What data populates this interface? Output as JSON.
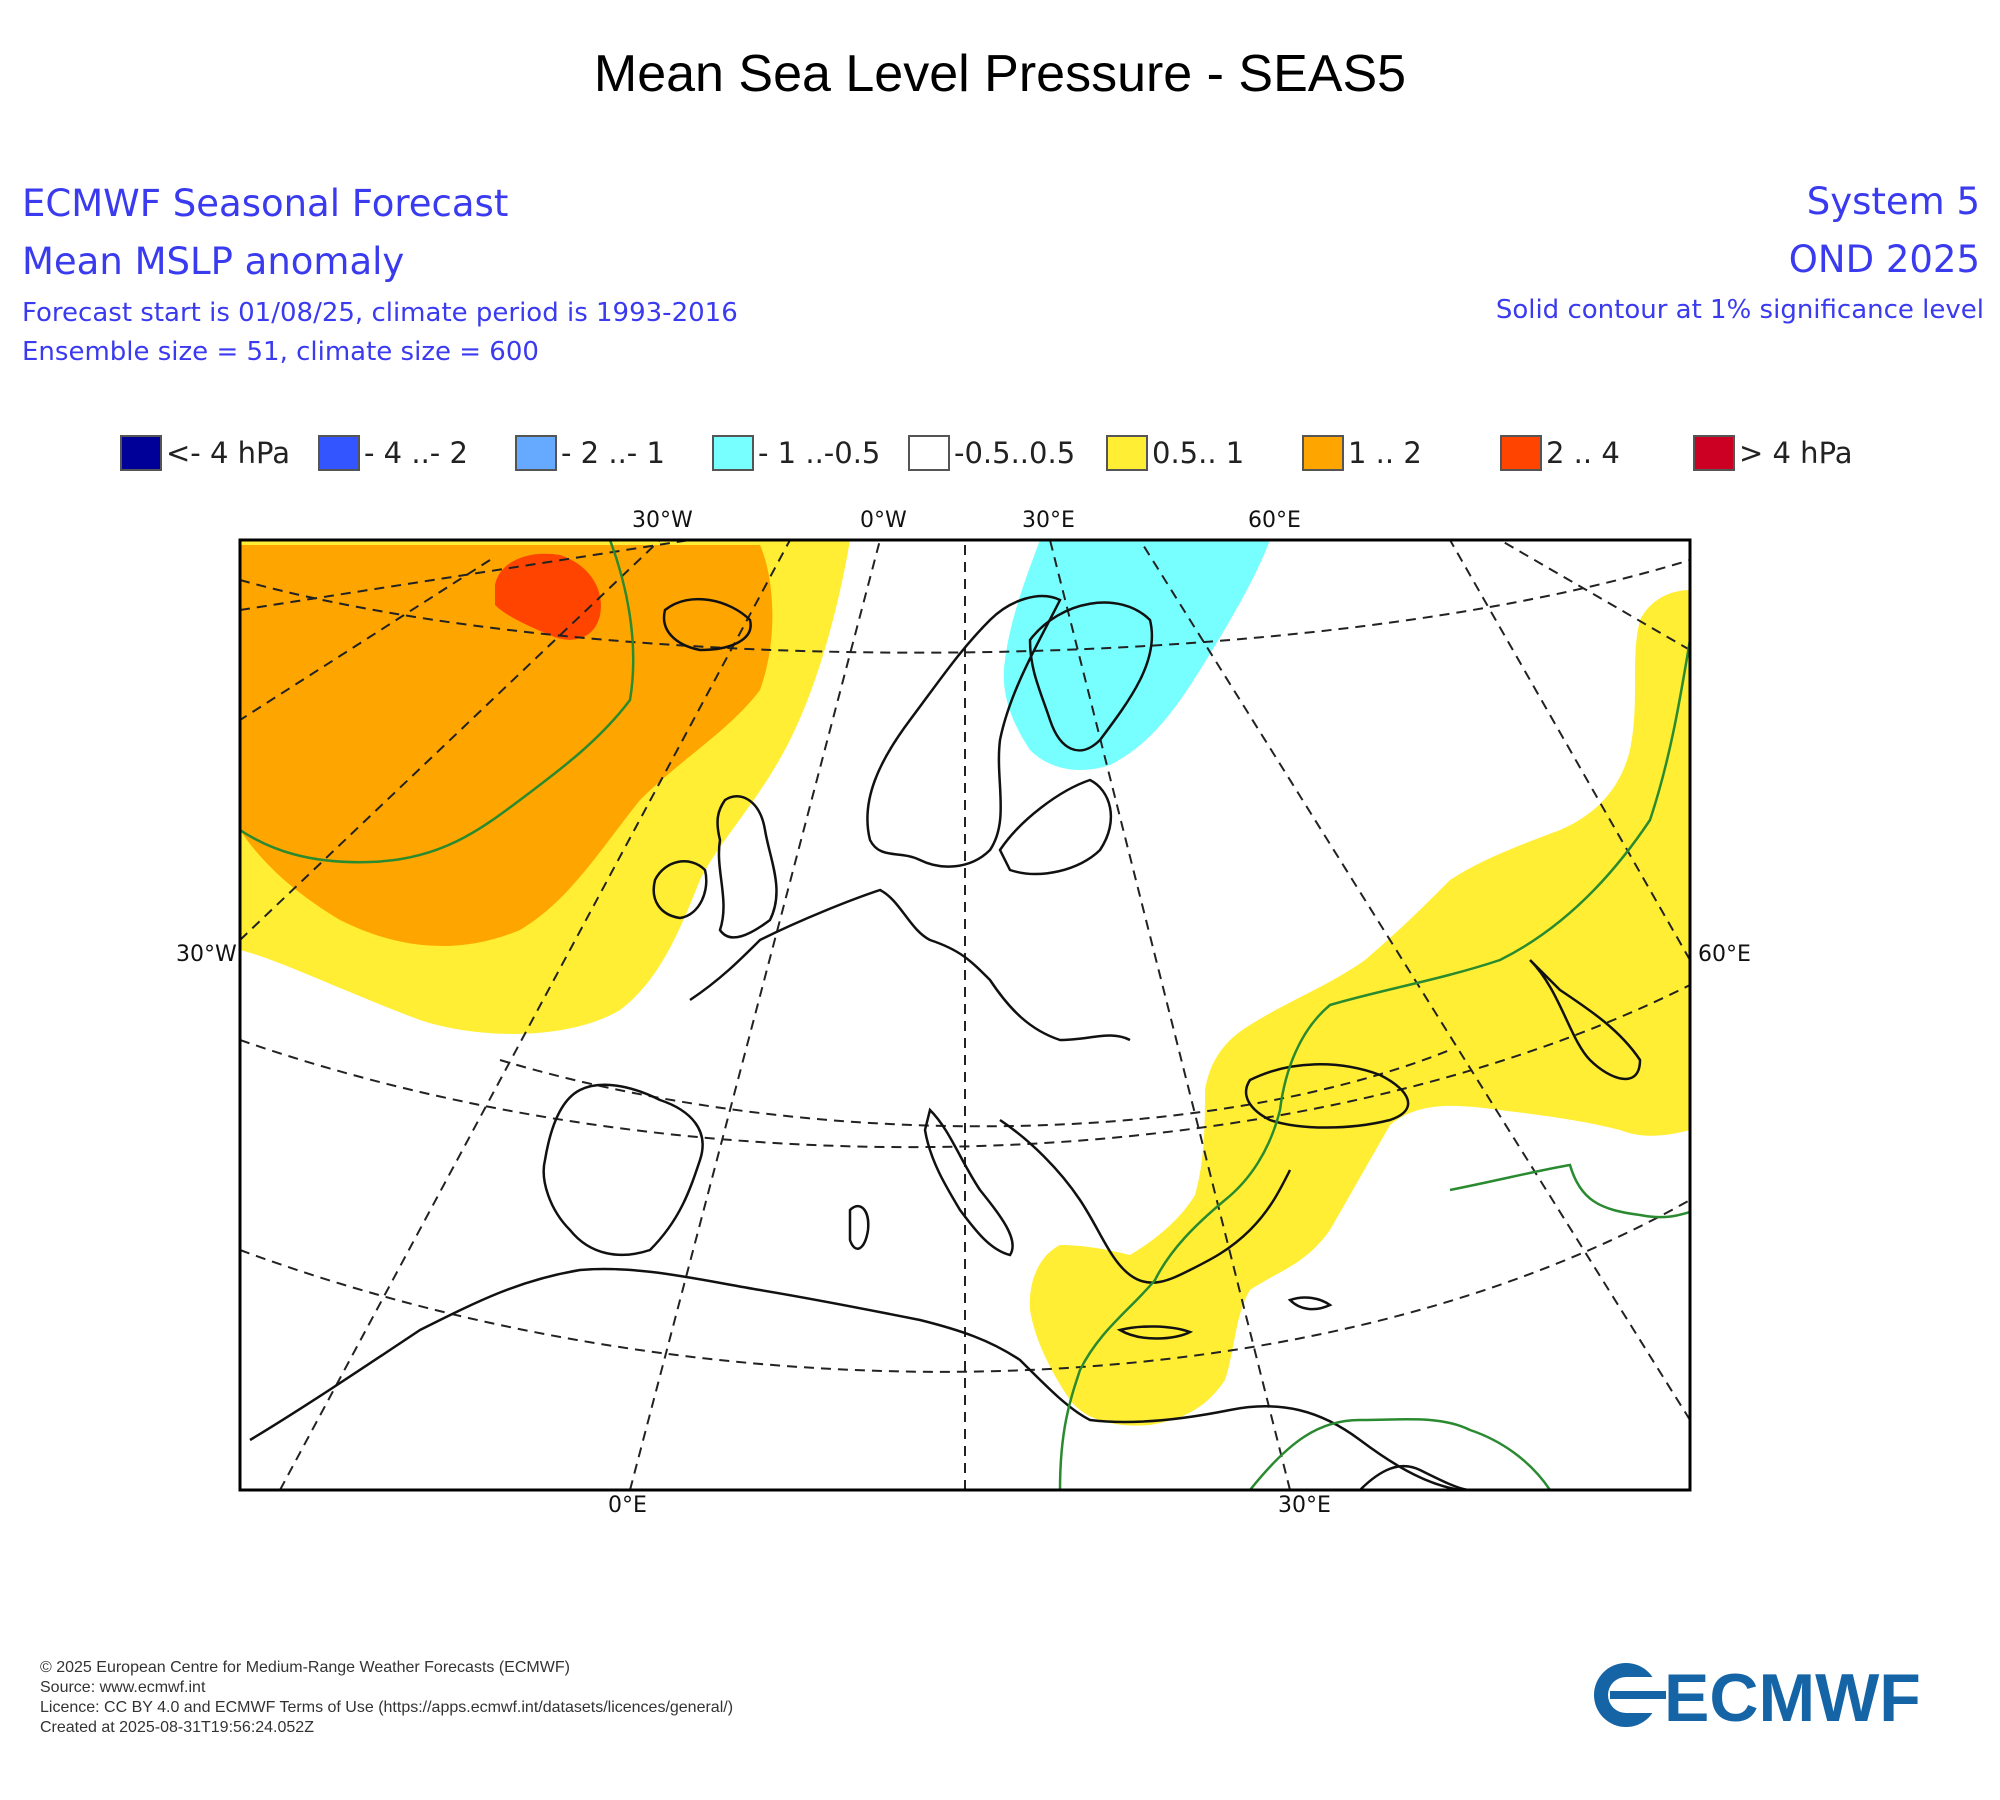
{
  "title": "Mean Sea Level Pressure - SEAS5",
  "header": {
    "left": [
      "ECMWF Seasonal Forecast",
      "Mean MSLP anomaly",
      "Forecast start is 01/08/25, climate period is 1993-2016",
      "Ensemble size = 51, climate size = 600"
    ],
    "right": [
      "System 5",
      "OND 2025",
      "Solid contour at 1% significance level"
    ]
  },
  "legend": [
    {
      "label": "<- 4 hPa",
      "color": "#000099"
    },
    {
      "label": "- 4 ..- 2",
      "color": "#3355ff"
    },
    {
      "label": "- 2 ..- 1",
      "color": "#66aaff"
    },
    {
      "label": "- 1 ..-0.5",
      "color": "#77ffff"
    },
    {
      "label": "-0.5..0.5",
      "color": "#ffffff"
    },
    {
      "label": "0.5.. 1",
      "color": "#ffee33"
    },
    {
      "label": "1 .. 2",
      "color": "#ffa500"
    },
    {
      "label": "2 .. 4",
      "color": "#ff4400"
    },
    {
      "label": "> 4 hPa",
      "color": "#cc0022"
    }
  ],
  "map_labels": {
    "top": [
      "30°W",
      "0°W",
      "30°E",
      "60°E"
    ],
    "left": "30°W",
    "right": "60°E",
    "bottom": [
      "0°E",
      "30°E"
    ]
  },
  "footer": [
    "© 2025 European Centre for Medium-Range Weather Forecasts (ECMWF)",
    "Source: www.ecmwf.int",
    "Licence: CC BY 4.0 and ECMWF Terms of Use (https://apps.ecmwf.int/datasets/licences/general/)",
    "Created at 2025-08-31T19:56:24.052Z"
  ],
  "logo": {
    "text": "ECMWF",
    "color": "#1565a6"
  }
}
